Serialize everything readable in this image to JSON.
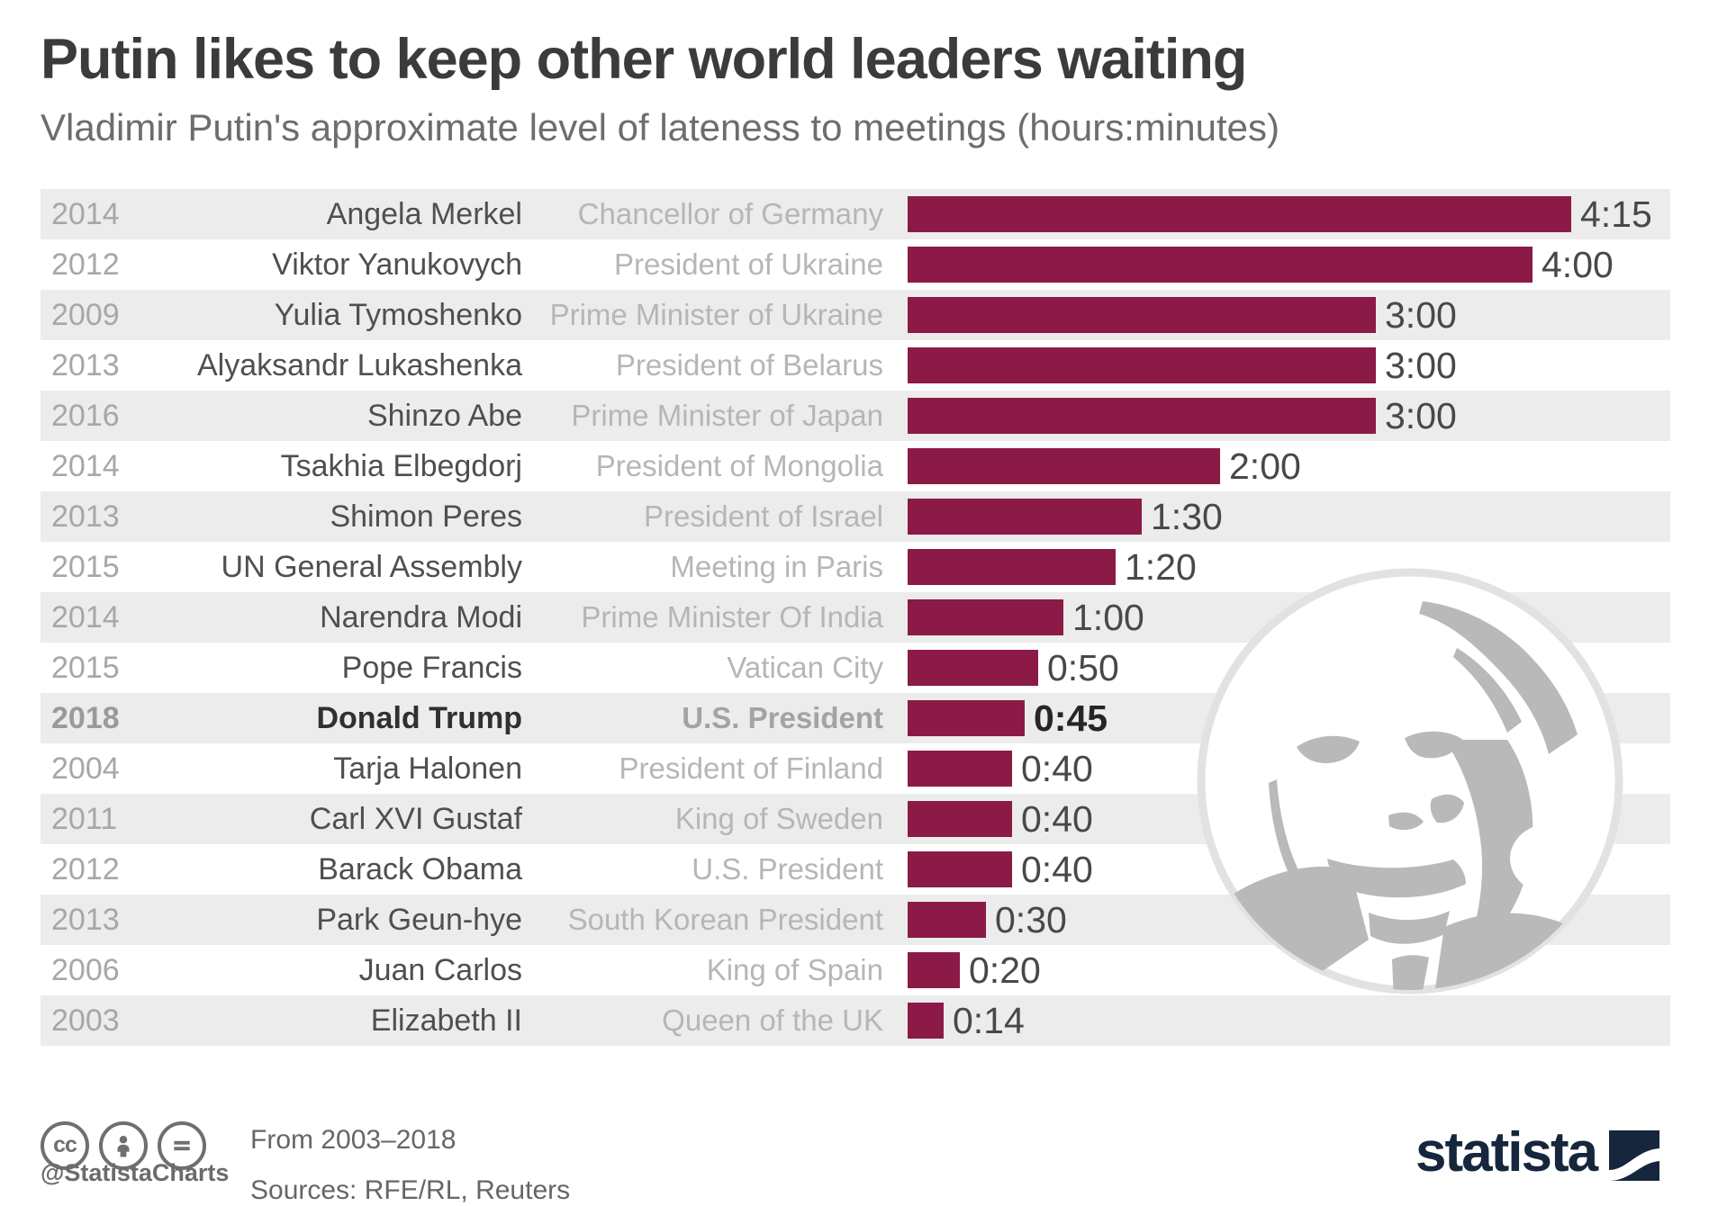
{
  "chart_data": {
    "type": "bar",
    "orientation": "horizontal",
    "title": "Putin likes to keep other world leaders waiting",
    "subtitle": "Vladimir Putin's approximate level of lateness to meetings (hours:minutes)",
    "unit": "hours:minutes",
    "value_axis": {
      "min_minutes": 0,
      "max_minutes": 255,
      "gridlines": false,
      "tick_labels": "none (values labeled at bar ends)"
    },
    "legend": "none",
    "rows": [
      {
        "year": "2014",
        "name": "Angela Merkel",
        "role": "Chancellor of Germany",
        "label": "4:15",
        "minutes": 255,
        "emphasis": false
      },
      {
        "year": "2012",
        "name": "Viktor Yanukovych",
        "role": "President of Ukraine",
        "label": "4:00",
        "minutes": 240,
        "emphasis": false
      },
      {
        "year": "2009",
        "name": "Yulia Tymoshenko",
        "role": "Prime Minister of Ukraine",
        "label": "3:00",
        "minutes": 180,
        "emphasis": false
      },
      {
        "year": "2013",
        "name": "Alyaksandr Lukashenka",
        "role": "President of Belarus",
        "label": "3:00",
        "minutes": 180,
        "emphasis": false
      },
      {
        "year": "2016",
        "name": "Shinzo Abe",
        "role": "Prime Minister of Japan",
        "label": "3:00",
        "minutes": 180,
        "emphasis": false
      },
      {
        "year": "2014",
        "name": "Tsakhia Elbegdorj",
        "role": "President of Mongolia",
        "label": "2:00",
        "minutes": 120,
        "emphasis": false
      },
      {
        "year": "2013",
        "name": "Shimon Peres",
        "role": "President of Israel",
        "label": "1:30",
        "minutes": 90,
        "emphasis": false
      },
      {
        "year": "2015",
        "name": "UN General Assembly",
        "role": "Meeting in Paris",
        "label": "1:20",
        "minutes": 80,
        "emphasis": false
      },
      {
        "year": "2014",
        "name": "Narendra Modi",
        "role": "Prime Minister Of India",
        "label": "1:00",
        "minutes": 60,
        "emphasis": false
      },
      {
        "year": "2015",
        "name": "Pope Francis",
        "role": "Vatican City",
        "label": "0:50",
        "minutes": 50,
        "emphasis": false
      },
      {
        "year": "2018",
        "name": "Donald Trump",
        "role": "U.S. President",
        "label": "0:45",
        "minutes": 45,
        "emphasis": true
      },
      {
        "year": "2004",
        "name": "Tarja Halonen",
        "role": "President of Finland",
        "label": "0:40",
        "minutes": 40,
        "emphasis": false
      },
      {
        "year": "2011",
        "name": "Carl XVI Gustaf",
        "role": "King of Sweden",
        "label": "0:40",
        "minutes": 40,
        "emphasis": false
      },
      {
        "year": "2012",
        "name": "Barack Obama",
        "role": "U.S. President",
        "label": "0:40",
        "minutes": 40,
        "emphasis": false
      },
      {
        "year": "2013",
        "name": "Park Geun-hye",
        "role": "South Korean President",
        "label": "0:30",
        "minutes": 30,
        "emphasis": false
      },
      {
        "year": "2006",
        "name": "Juan Carlos",
        "role": "King of Spain",
        "label": "0:20",
        "minutes": 20,
        "emphasis": false
      },
      {
        "year": "2003",
        "name": "Elizabeth II",
        "role": "Queen of the UK",
        "label": "0:14",
        "minutes": 14,
        "emphasis": false
      }
    ]
  },
  "footer": {
    "license_icons": [
      "cc",
      "attribution",
      "equal"
    ],
    "cc_label": "cc",
    "handle": "@StatistaCharts",
    "range_note": "From 2003–2018",
    "sources_note": "Sources: RFE/RL, Reuters",
    "brand": "statista"
  },
  "colors": {
    "bar": "#8C1A47",
    "row_band": "#ECECEC",
    "title": "#3B3B3B",
    "subtitle": "#6D6D6D",
    "year_text": "#A7A7A7",
    "name_text": "#4F4F4F",
    "role_text": "#B6B6B6",
    "value_text": "#484848",
    "footer_text": "#6B6B6B",
    "brand_navy": "#16263C",
    "portrait_gray": "#B9B9B9"
  }
}
